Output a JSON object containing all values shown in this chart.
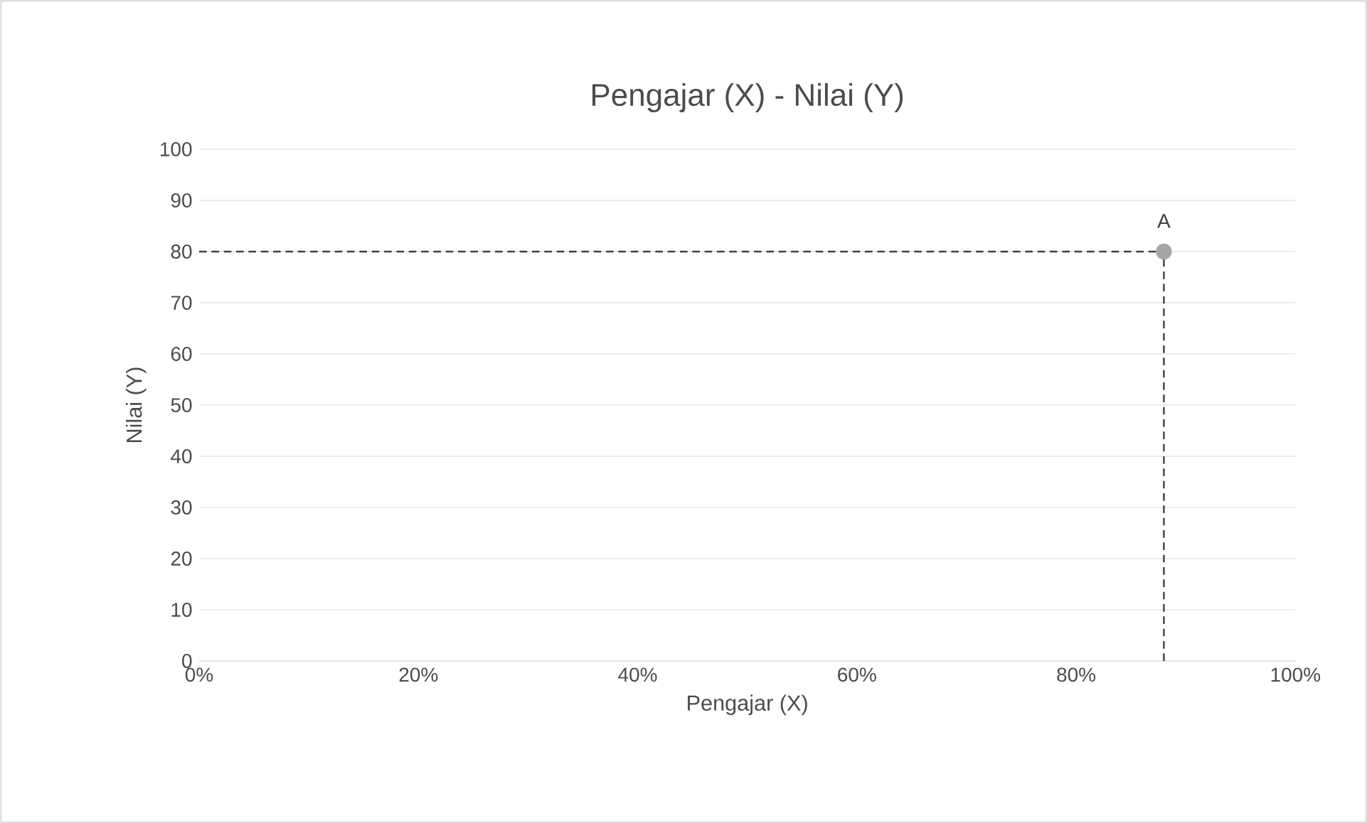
{
  "chart_data": {
    "type": "scatter",
    "title": "Pengajar (X) - Nilai (Y)",
    "xlabel": "Pengajar (X)",
    "ylabel": "Nilai (Y)",
    "series": [
      {
        "color": "#a5a5a5",
        "x": [
          88
        ],
        "values": [
          80
        ]
      }
    ],
    "xlim": [
      0,
      100
    ],
    "xticks": [
      {
        "value": 0,
        "label": "0%"
      },
      {
        "value": 20,
        "label": "20%"
      },
      {
        "value": 40,
        "label": "40%"
      },
      {
        "value": 60,
        "label": "60%"
      },
      {
        "value": 80,
        "label": "80%"
      },
      {
        "value": 100,
        "label": "100%"
      }
    ],
    "ylim": [
      0,
      100
    ],
    "yticks": [
      0,
      10,
      20,
      30,
      40,
      50,
      60,
      70,
      80,
      90,
      100
    ],
    "ref_lines": [
      {
        "axis": "y",
        "value": 80,
        "color": "#404040",
        "line_style": "dashed"
      },
      {
        "axis": "x",
        "value": 88,
        "color": "#404040",
        "line_style": "dashed"
      }
    ],
    "annotations": [
      {
        "text": "A",
        "x": 88,
        "y": 80
      }
    ],
    "grid": "y",
    "marker": "circle"
  }
}
